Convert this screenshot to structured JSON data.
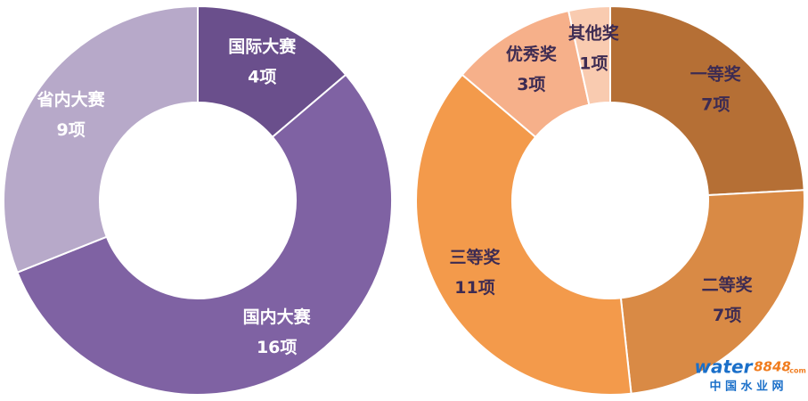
{
  "chart_data": [
    {
      "type": "pie",
      "donut": true,
      "categories": [
        "国际大赛",
        "国内大赛",
        "省内大赛"
      ],
      "values": [
        4,
        16,
        9
      ],
      "value_labels": [
        "4项",
        "16项",
        "9项"
      ],
      "colors": [
        "#6a4f8c",
        "#7f62a3",
        "#b7a9c9"
      ],
      "label_color": "#ffffff"
    },
    {
      "type": "pie",
      "donut": true,
      "categories": [
        "一等奖",
        "二等奖",
        "三等奖",
        "优秀奖",
        "其他奖"
      ],
      "values": [
        7,
        7,
        11,
        3,
        1
      ],
      "value_labels": [
        "7项",
        "7项",
        "11项",
        "3项",
        "1项"
      ],
      "colors": [
        "#b56f35",
        "#d98a45",
        "#f39a4b",
        "#f6b08a",
        "#f9cbb0"
      ],
      "label_color": "#3d2b52"
    }
  ],
  "watermark": {
    "brand": "water",
    "number": "8848",
    "domain": ".com",
    "cn": "中 国 水 业 网"
  }
}
